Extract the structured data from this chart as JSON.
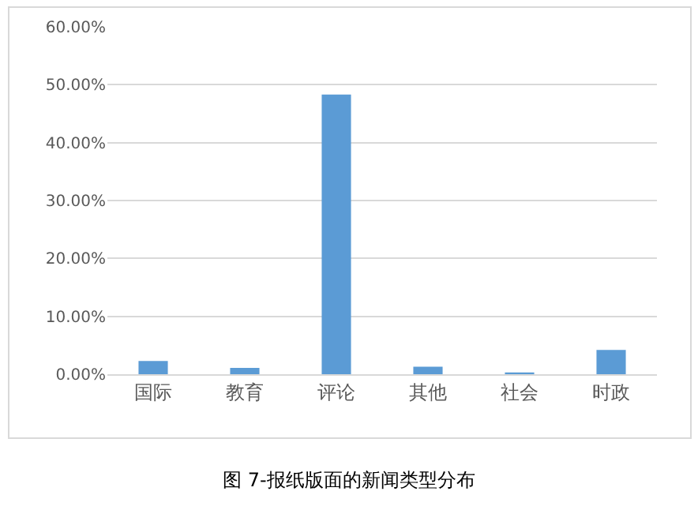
{
  "chart_data": {
    "type": "bar",
    "categories": [
      "国际",
      "教育",
      "评论",
      "其他",
      "社会",
      "时政"
    ],
    "values": [
      2.3,
      1.1,
      48.3,
      1.3,
      0.3,
      4.2
    ],
    "color": "#5b9bd5",
    "ylim": [
      0,
      60
    ],
    "yticks": [
      {
        "value": 0,
        "label": "0.00%"
      },
      {
        "value": 10,
        "label": "10.00%"
      },
      {
        "value": 20,
        "label": "20.00%"
      },
      {
        "value": 30,
        "label": "30.00%"
      },
      {
        "value": 40,
        "label": "40.00%"
      },
      {
        "value": 50,
        "label": "50.00%"
      },
      {
        "value": 60,
        "label": "60.00%"
      }
    ],
    "grid": "y",
    "annotations": [
      "图 7-报纸版面的新闻类型分布"
    ]
  }
}
